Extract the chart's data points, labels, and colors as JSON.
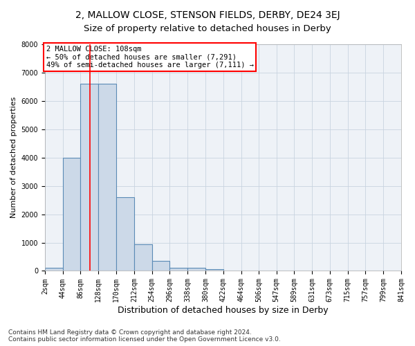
{
  "title": "2, MALLOW CLOSE, STENSON FIELDS, DERBY, DE24 3EJ",
  "subtitle": "Size of property relative to detached houses in Derby",
  "xlabel": "Distribution of detached houses by size in Derby",
  "ylabel": "Number of detached properties",
  "bar_values": [
    100,
    4000,
    6600,
    6600,
    2600,
    950,
    350,
    120,
    100,
    60,
    0,
    0,
    0,
    0,
    0,
    0,
    0,
    0,
    0,
    0
  ],
  "bin_edges": [
    2,
    44,
    86,
    128,
    170,
    212,
    254,
    296,
    338,
    380,
    422,
    464,
    506,
    547,
    589,
    631,
    673,
    715,
    757,
    799,
    841
  ],
  "tick_labels": [
    "2sqm",
    "44sqm",
    "86sqm",
    "128sqm",
    "170sqm",
    "212sqm",
    "254sqm",
    "296sqm",
    "338sqm",
    "380sqm",
    "422sqm",
    "464sqm",
    "506sqm",
    "547sqm",
    "589sqm",
    "631sqm",
    "673sqm",
    "715sqm",
    "757sqm",
    "799sqm",
    "841sqm"
  ],
  "bar_color": "#ccd9e8",
  "bar_edge_color": "#5a8ab5",
  "bar_linewidth": 0.8,
  "red_line_x": 108,
  "ylim": [
    0,
    8000
  ],
  "yticks": [
    0,
    1000,
    2000,
    3000,
    4000,
    5000,
    6000,
    7000,
    8000
  ],
  "annotation_text": "2 MALLOW CLOSE: 108sqm\n← 50% of detached houses are smaller (7,291)\n49% of semi-detached houses are larger (7,111) →",
  "annotation_box_color": "white",
  "annotation_box_edge": "red",
  "grid_color": "#c8d4e0",
  "background_color": "#eef2f7",
  "footer_text": "Contains HM Land Registry data © Crown copyright and database right 2024.\nContains public sector information licensed under the Open Government Licence v3.0.",
  "title_fontsize": 10,
  "subtitle_fontsize": 9.5,
  "xlabel_fontsize": 9,
  "ylabel_fontsize": 8,
  "tick_fontsize": 7,
  "annotation_fontsize": 7.5,
  "footer_fontsize": 6.5
}
